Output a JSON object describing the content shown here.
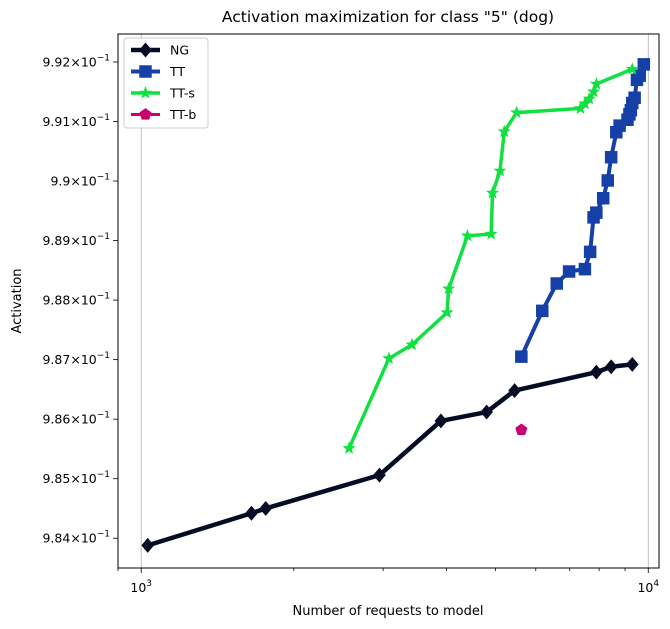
{
  "chart_data": {
    "type": "line",
    "title": "Activation maximization for class \"5\" (dog)",
    "xlabel": "Number of requests to model",
    "ylabel": "Activation",
    "xscale": "log",
    "xlim": [
      900,
      10500
    ],
    "ylim": [
      0.9835,
      0.99247
    ],
    "x_ticks": [
      {
        "value": 1000,
        "base": "10",
        "exp": "3"
      },
      {
        "value": 10000,
        "base": "10",
        "exp": "4"
      }
    ],
    "y_ticks": [
      {
        "value": 0.984,
        "mantissa": "9.84",
        "base": "10",
        "exp": "−1"
      },
      {
        "value": 0.985,
        "mantissa": "9.85",
        "base": "10",
        "exp": "−1"
      },
      {
        "value": 0.986,
        "mantissa": "9.86",
        "base": "10",
        "exp": "−1"
      },
      {
        "value": 0.987,
        "mantissa": "9.87",
        "base": "10",
        "exp": "−1"
      },
      {
        "value": 0.988,
        "mantissa": "9.88",
        "base": "10",
        "exp": "−1"
      },
      {
        "value": 0.989,
        "mantissa": "9.89",
        "base": "10",
        "exp": "−1"
      },
      {
        "value": 0.99,
        "mantissa": "9.9",
        "base": "10",
        "exp": "−1"
      },
      {
        "value": 0.991,
        "mantissa": "9.91",
        "base": "10",
        "exp": "−1"
      },
      {
        "value": 0.992,
        "mantissa": "9.92",
        "base": "10",
        "exp": "−1"
      }
    ],
    "vertical_grid_at": [
      1000,
      10000
    ],
    "legend_position": "top-left",
    "series": [
      {
        "name": "NG",
        "color": "#050c24",
        "marker": "diamond",
        "x": [
          1030,
          1650,
          1760,
          2950,
          3900,
          4800,
          5450,
          7900,
          8450,
          9300
        ],
        "y": [
          0.98388,
          0.98442,
          0.9845,
          0.98506,
          0.98597,
          0.98612,
          0.98648,
          0.98679,
          0.98688,
          0.98692
        ]
      },
      {
        "name": "TT",
        "color": "#1440a8",
        "marker": "square",
        "x": [
          5620,
          6180,
          6600,
          6980,
          7500,
          7680,
          7800,
          7900,
          8150,
          8320,
          8450,
          8650,
          8780,
          9100,
          9180,
          9240,
          9300,
          9400,
          9500,
          9620,
          9800
        ],
        "y": [
          0.98705,
          0.98782,
          0.98828,
          0.98848,
          0.98852,
          0.98881,
          0.98939,
          0.98947,
          0.98971,
          0.99001,
          0.9904,
          0.99082,
          0.99093,
          0.99103,
          0.99112,
          0.99119,
          0.99131,
          0.9914,
          0.9917,
          0.99177,
          0.99196
        ]
      },
      {
        "name": "TT-s",
        "color": "#10e040",
        "marker": "star",
        "x": [
          2570,
          3080,
          3420,
          4010,
          4040,
          4400,
          4900,
          4930,
          5100,
          5200,
          5500,
          7350,
          7500,
          7650,
          7800,
          7900,
          9300
        ],
        "y": [
          0.98551,
          0.98702,
          0.98725,
          0.98779,
          0.98819,
          0.98908,
          0.98911,
          0.9898,
          0.99017,
          0.99083,
          0.99115,
          0.99122,
          0.9913,
          0.99138,
          0.9915,
          0.99163,
          0.99188
        ]
      },
      {
        "name": "TT-b",
        "color": "#cc0070",
        "marker": "pentagon",
        "x": [
          5620
        ],
        "y": [
          0.98582
        ]
      }
    ]
  }
}
